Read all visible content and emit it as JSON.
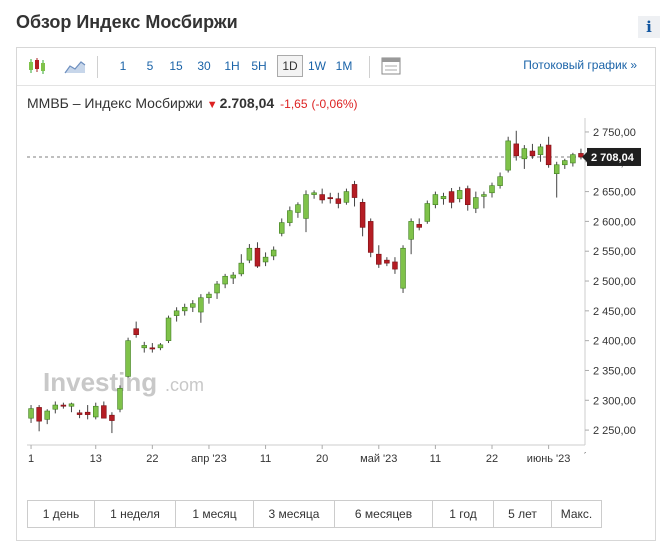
{
  "page": {
    "title": "Обзор Индекс Мосбиржи",
    "info_label": "i"
  },
  "toolbar": {
    "icons": [
      "candlestick-chart-icon",
      "area-chart-icon",
      "settings-panel-icon"
    ],
    "periods": [
      "1",
      "5",
      "15",
      "30",
      "1H",
      "5H",
      "1D",
      "1W",
      "1M"
    ],
    "active_period": "1D",
    "stream_link": "Потоковый график »"
  },
  "quote": {
    "name": "ММВБ – Индекс Мосбиржи",
    "price": "2.708,04",
    "change": "-1,65",
    "change_pct": "(-0,06%)",
    "direction_color": "#dd2222"
  },
  "watermark": {
    "brand": "Investing",
    "suffix": ".com"
  },
  "ranges": [
    "1 день",
    "1 неделя",
    "1 месяц",
    "3 месяца",
    "6 месяцев",
    "1 год",
    "5 лет",
    "Макс."
  ],
  "chart_data": {
    "type": "candlestick",
    "ylim": [
      2225,
      2760
    ],
    "yticks": [
      2250,
      2300,
      2350,
      2400,
      2450,
      2500,
      2550,
      2600,
      2650,
      2700,
      2750
    ],
    "ytick_labels": [
      "2 250,00",
      "2 300,00",
      "2 350,00",
      "2 400,00",
      "2 450,00",
      "2 500,00",
      "2 550,00",
      "2 600,00",
      "2 650,00",
      "2 700,00",
      "2 750,00"
    ],
    "current_value": 2708.04,
    "current_label": "2 708,04",
    "xtick_labels": [
      {
        "label": "1",
        "index": 0
      },
      {
        "label": "13",
        "index": 8
      },
      {
        "label": "22",
        "index": 15
      },
      {
        "label": "апр '23",
        "index": 22
      },
      {
        "label": "11",
        "index": 29
      },
      {
        "label": "20",
        "index": 36
      },
      {
        "label": "май '23",
        "index": 43
      },
      {
        "label": "11",
        "index": 50
      },
      {
        "label": "22",
        "index": 57
      },
      {
        "label": "июнь '23",
        "index": 64
      }
    ],
    "up_color": "#7fc24a",
    "down_color": "#b51d24",
    "candles": [
      {
        "o": 2270,
        "h": 2292,
        "l": 2262,
        "c": 2286
      },
      {
        "o": 2288,
        "h": 2292,
        "l": 2248,
        "c": 2265
      },
      {
        "o": 2268,
        "h": 2285,
        "l": 2260,
        "c": 2282
      },
      {
        "o": 2285,
        "h": 2298,
        "l": 2278,
        "c": 2292
      },
      {
        "o": 2292,
        "h": 2296,
        "l": 2286,
        "c": 2290
      },
      {
        "o": 2290,
        "h": 2296,
        "l": 2280,
        "c": 2294
      },
      {
        "o": 2279,
        "h": 2284,
        "l": 2270,
        "c": 2276
      },
      {
        "o": 2280,
        "h": 2292,
        "l": 2268,
        "c": 2276
      },
      {
        "o": 2272,
        "h": 2296,
        "l": 2268,
        "c": 2290
      },
      {
        "o": 2291,
        "h": 2298,
        "l": 2270,
        "c": 2270
      },
      {
        "o": 2275,
        "h": 2280,
        "l": 2245,
        "c": 2266
      },
      {
        "o": 2285,
        "h": 2325,
        "l": 2280,
        "c": 2320
      },
      {
        "o": 2340,
        "h": 2405,
        "l": 2338,
        "c": 2400
      },
      {
        "o": 2420,
        "h": 2432,
        "l": 2405,
        "c": 2410
      },
      {
        "o": 2388,
        "h": 2398,
        "l": 2380,
        "c": 2392
      },
      {
        "o": 2388,
        "h": 2396,
        "l": 2380,
        "c": 2386
      },
      {
        "o": 2388,
        "h": 2396,
        "l": 2384,
        "c": 2393
      },
      {
        "o": 2400,
        "h": 2442,
        "l": 2396,
        "c": 2438
      },
      {
        "o": 2442,
        "h": 2456,
        "l": 2432,
        "c": 2450
      },
      {
        "o": 2450,
        "h": 2462,
        "l": 2442,
        "c": 2456
      },
      {
        "o": 2456,
        "h": 2468,
        "l": 2448,
        "c": 2462
      },
      {
        "o": 2448,
        "h": 2478,
        "l": 2430,
        "c": 2472
      },
      {
        "o": 2472,
        "h": 2482,
        "l": 2462,
        "c": 2478
      },
      {
        "o": 2480,
        "h": 2500,
        "l": 2470,
        "c": 2495
      },
      {
        "o": 2495,
        "h": 2512,
        "l": 2488,
        "c": 2508
      },
      {
        "o": 2505,
        "h": 2515,
        "l": 2495,
        "c": 2510
      },
      {
        "o": 2512,
        "h": 2545,
        "l": 2508,
        "c": 2530
      },
      {
        "o": 2535,
        "h": 2562,
        "l": 2530,
        "c": 2555
      },
      {
        "o": 2555,
        "h": 2565,
        "l": 2522,
        "c": 2525
      },
      {
        "o": 2532,
        "h": 2548,
        "l": 2525,
        "c": 2540
      },
      {
        "o": 2542,
        "h": 2558,
        "l": 2535,
        "c": 2552
      },
      {
        "o": 2580,
        "h": 2605,
        "l": 2575,
        "c": 2598
      },
      {
        "o": 2598,
        "h": 2625,
        "l": 2592,
        "c": 2618
      },
      {
        "o": 2615,
        "h": 2632,
        "l": 2606,
        "c": 2628
      },
      {
        "o": 2605,
        "h": 2652,
        "l": 2582,
        "c": 2645
      },
      {
        "o": 2645,
        "h": 2652,
        "l": 2638,
        "c": 2648
      },
      {
        "o": 2645,
        "h": 2655,
        "l": 2630,
        "c": 2636
      },
      {
        "o": 2640,
        "h": 2648,
        "l": 2630,
        "c": 2638
      },
      {
        "o": 2638,
        "h": 2648,
        "l": 2622,
        "c": 2630
      },
      {
        "o": 2632,
        "h": 2655,
        "l": 2628,
        "c": 2650
      },
      {
        "o": 2662,
        "h": 2668,
        "l": 2625,
        "c": 2640
      },
      {
        "o": 2632,
        "h": 2638,
        "l": 2575,
        "c": 2590
      },
      {
        "o": 2600,
        "h": 2605,
        "l": 2540,
        "c": 2548
      },
      {
        "o": 2545,
        "h": 2560,
        "l": 2522,
        "c": 2528
      },
      {
        "o": 2535,
        "h": 2540,
        "l": 2525,
        "c": 2530
      },
      {
        "o": 2532,
        "h": 2540,
        "l": 2512,
        "c": 2520
      },
      {
        "o": 2488,
        "h": 2560,
        "l": 2480,
        "c": 2555
      },
      {
        "o": 2570,
        "h": 2605,
        "l": 2545,
        "c": 2600
      },
      {
        "o": 2595,
        "h": 2605,
        "l": 2585,
        "c": 2590
      },
      {
        "o": 2600,
        "h": 2635,
        "l": 2596,
        "c": 2630
      },
      {
        "o": 2628,
        "h": 2650,
        "l": 2622,
        "c": 2645
      },
      {
        "o": 2638,
        "h": 2648,
        "l": 2628,
        "c": 2642
      },
      {
        "o": 2650,
        "h": 2656,
        "l": 2622,
        "c": 2632
      },
      {
        "o": 2638,
        "h": 2658,
        "l": 2632,
        "c": 2652
      },
      {
        "o": 2655,
        "h": 2660,
        "l": 2618,
        "c": 2628
      },
      {
        "o": 2622,
        "h": 2650,
        "l": 2614,
        "c": 2640
      },
      {
        "o": 2642,
        "h": 2650,
        "l": 2622,
        "c": 2645
      },
      {
        "o": 2648,
        "h": 2665,
        "l": 2640,
        "c": 2660
      },
      {
        "o": 2660,
        "h": 2682,
        "l": 2655,
        "c": 2675
      },
      {
        "o": 2686,
        "h": 2742,
        "l": 2682,
        "c": 2735
      },
      {
        "o": 2730,
        "h": 2752,
        "l": 2702,
        "c": 2710
      },
      {
        "o": 2705,
        "h": 2728,
        "l": 2688,
        "c": 2722
      },
      {
        "o": 2718,
        "h": 2730,
        "l": 2705,
        "c": 2710
      },
      {
        "o": 2712,
        "h": 2730,
        "l": 2700,
        "c": 2725
      },
      {
        "o": 2728,
        "h": 2742,
        "l": 2690,
        "c": 2695
      },
      {
        "o": 2680,
        "h": 2700,
        "l": 2640,
        "c": 2695
      },
      {
        "o": 2695,
        "h": 2705,
        "l": 2688,
        "c": 2702
      },
      {
        "o": 2698,
        "h": 2715,
        "l": 2692,
        "c": 2712
      },
      {
        "o": 2714,
        "h": 2722,
        "l": 2704,
        "c": 2708
      }
    ]
  }
}
